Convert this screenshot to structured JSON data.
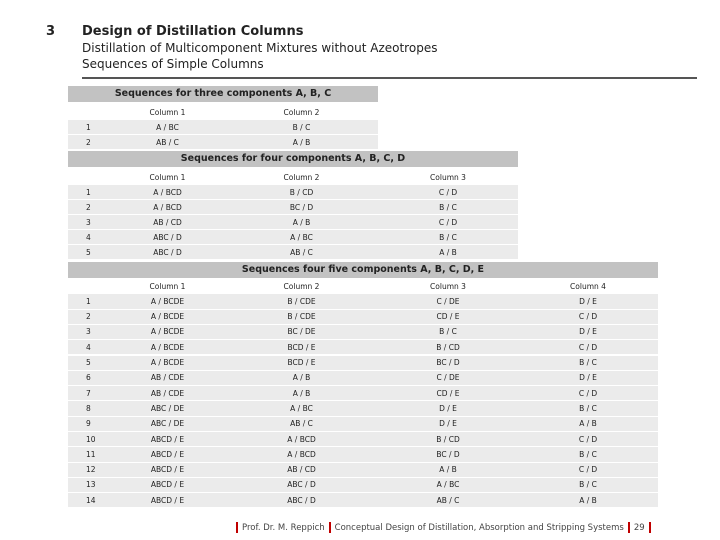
{
  "header": {
    "number": "3",
    "title": "Design of Distillation Columns",
    "subtitle": "Distillation of Multicomponent Mixtures without Azeotropes",
    "subsubtitle": "Sequences of Simple Columns"
  },
  "tables": [
    {
      "title": "Sequences for three components A, B, C",
      "columns": [
        "Column 1",
        "Column 2"
      ],
      "rows": [
        [
          "1",
          "A / BC",
          "B / C"
        ],
        [
          "2",
          "AB / C",
          "A / B"
        ]
      ]
    },
    {
      "title": "Sequences for four components A, B, C, D",
      "columns": [
        "Column 1",
        "Column 2",
        "Column 3"
      ],
      "rows": [
        [
          "1",
          "A / BCD",
          "B / CD",
          "C / D"
        ],
        [
          "2",
          "A / BCD",
          "BC / D",
          "B / C"
        ],
        [
          "3",
          "AB / CD",
          "A / B",
          "C / D"
        ],
        [
          "4",
          "ABC / D",
          "A / BC",
          "B / C"
        ],
        [
          "5",
          "ABC / D",
          "AB / C",
          "A / B"
        ]
      ]
    },
    {
      "title": "Sequences four five components A, B, C, D, E",
      "columns": [
        "Column 1",
        "Column 2",
        "Column 3",
        "Column 4"
      ],
      "rows": [
        [
          "1",
          "A / BCDE",
          "B / CDE",
          "C / DE",
          "D / E"
        ],
        [
          "2",
          "A / BCDE",
          "B / CDE",
          "CD / E",
          "C / D"
        ],
        [
          "3",
          "A / BCDE",
          "BC / DE",
          "B / C",
          "D / E"
        ],
        [
          "4",
          "A / BCDE",
          "BCD / E",
          "B / CD",
          "C / D"
        ],
        [
          "5",
          "A / BCDE",
          "BCD / E",
          "BC / D",
          "B / C"
        ],
        [
          "6",
          "AB / CDE",
          "A / B",
          "C / DE",
          "D / E"
        ],
        [
          "7",
          "AB / CDE",
          "A / B",
          "CD / E",
          "C / D"
        ],
        [
          "8",
          "ABC / DE",
          "A / BC",
          "D / E",
          "B / C"
        ],
        [
          "9",
          "ABC / DE",
          "AB / C",
          "D / E",
          "A / B"
        ],
        [
          "10",
          "ABCD / E",
          "A / BCD",
          "B / CD",
          "C / D"
        ],
        [
          "11",
          "ABCD / E",
          "A / BCD",
          "BC / D",
          "B / C"
        ],
        [
          "12",
          "ABCD / E",
          "AB / CD",
          "A / B",
          "C / D"
        ],
        [
          "13",
          "ABCD / E",
          "ABC / D",
          "A / BC",
          "B / C"
        ],
        [
          "14",
          "ABCD / E",
          "ABC / D",
          "AB / C",
          "A / B"
        ]
      ]
    }
  ],
  "footer": {
    "author": "Prof. Dr. M. Reppich",
    "course": "Conceptual Design of Distillation, Absorption and Stripping Systems",
    "page": "29"
  }
}
